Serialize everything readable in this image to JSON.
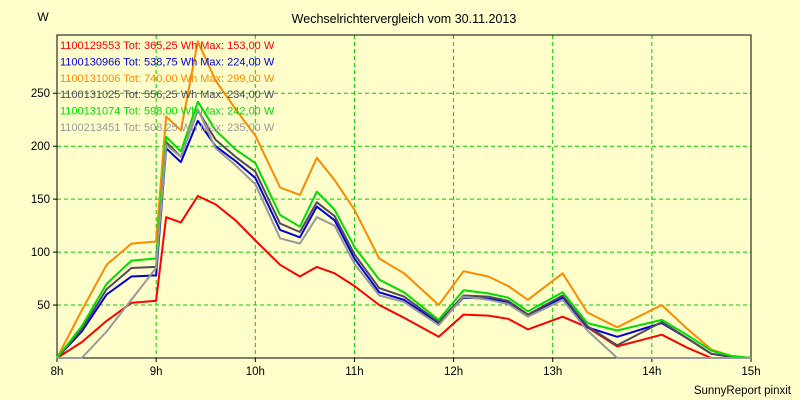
{
  "title": "Wechselrichtervergleich vom 30.11.2013",
  "y_unit_label": "W",
  "credit": "SunnyReport pinxit",
  "colors": {
    "background": "#ffffcc",
    "grid": "#00cc00",
    "axis": "#000000",
    "text": "#000000"
  },
  "chart_data": {
    "type": "line",
    "title": "Wechselrichtervergleich vom 30.11.2013",
    "xlabel": "",
    "ylabel": "W",
    "xlim": [
      8,
      15
    ],
    "ylim": [
      0,
      305
    ],
    "grid": "dashed-green-on-pale-yellow",
    "legend_position": "top-left-inside",
    "x_ticks": [
      8,
      9,
      10,
      11,
      12,
      13,
      14,
      15
    ],
    "x_tick_labels": [
      "8h",
      "9h",
      "10h",
      "11h",
      "12h",
      "13h",
      "14h",
      "15h"
    ],
    "y_ticks": [
      50,
      100,
      150,
      200,
      250
    ],
    "x": [
      8.0,
      8.25,
      8.5,
      8.75,
      9.0,
      9.1,
      9.25,
      9.42,
      9.6,
      9.8,
      10.0,
      10.25,
      10.45,
      10.62,
      10.8,
      11.0,
      11.25,
      11.5,
      11.85,
      12.1,
      12.35,
      12.55,
      12.75,
      13.1,
      13.35,
      13.65,
      14.1,
      14.35,
      14.6,
      14.8,
      15.0
    ],
    "series": [
      {
        "name": "1100129553",
        "tot": "365,25 Wh",
        "max": "153,00 W",
        "legend": "1100129553 Tot: 365,25 Wh Max: 153,00 W",
        "color": "#ff0000",
        "values": [
          0,
          15,
          35,
          52,
          54,
          133,
          128,
          153,
          145,
          130,
          111,
          88,
          77,
          86,
          80,
          68,
          50,
          38,
          20,
          41,
          40,
          37,
          27,
          39,
          29,
          11,
          22,
          10,
          0,
          0,
          0
        ]
      },
      {
        "name": "1100130966",
        "tot": "538,75 Wh",
        "max": "224,00 W",
        "legend": "1100130966 Tot: 538,75 Wh Max: 224,00 W",
        "color": "#0000dd",
        "values": [
          0,
          25,
          60,
          77,
          78,
          198,
          185,
          224,
          200,
          186,
          170,
          121,
          114,
          143,
          130,
          94,
          62,
          55,
          33,
          57,
          56,
          53,
          40,
          57,
          29,
          20,
          33,
          19,
          4,
          1,
          0
        ]
      },
      {
        "name": "1100131006",
        "tot": "740,00 Wh",
        "max": "299,00 W",
        "legend": "1100131006 Tot: 740,00 Wh Max: 299,00 W",
        "color": "#ff8a00",
        "values": [
          0,
          45,
          88,
          108,
          110,
          228,
          215,
          299,
          262,
          235,
          210,
          161,
          154,
          189,
          168,
          140,
          94,
          80,
          50,
          82,
          77,
          68,
          55,
          80,
          43,
          29,
          50,
          28,
          8,
          2,
          0
        ]
      },
      {
        "name": "1100131025",
        "tot": "556,25 Wh",
        "max": "234,00 W",
        "legend": "1100131025 Tot: 556,25 Wh Max: 234,00 W",
        "color": "#504a5a",
        "values": [
          0,
          27,
          65,
          85,
          86,
          204,
          190,
          234,
          206,
          190,
          176,
          127,
          119,
          147,
          134,
          98,
          66,
          58,
          34,
          59,
          58,
          54,
          41,
          59,
          30,
          12,
          34,
          19,
          4,
          1,
          0
        ]
      },
      {
        "name": "1100131074",
        "tot": "598,00 Wh",
        "max": "242,00 W",
        "legend": "1100131074 Tot: 598,00 Wh Max: 242,00 W",
        "color": "#00dd00",
        "values": [
          0,
          30,
          70,
          92,
          94,
          209,
          195,
          242,
          215,
          197,
          184,
          135,
          124,
          157,
          140,
          105,
          74,
          62,
          36,
          64,
          61,
          57,
          44,
          62,
          33,
          26,
          36,
          22,
          7,
          2,
          0
        ]
      },
      {
        "name": "1100213451",
        "tot": "508,25 Wh",
        "max": "235,00 W",
        "legend": "1100213451 Tot: 508,25 Wh Max: 235,00 W",
        "color": "#999999",
        "values": [
          0,
          0,
          25,
          55,
          85,
          201,
          190,
          235,
          198,
          182,
          164,
          113,
          108,
          133,
          125,
          89,
          59,
          53,
          31,
          58,
          55,
          51,
          39,
          55,
          26,
          0,
          0,
          0,
          0,
          0,
          0
        ]
      }
    ]
  }
}
